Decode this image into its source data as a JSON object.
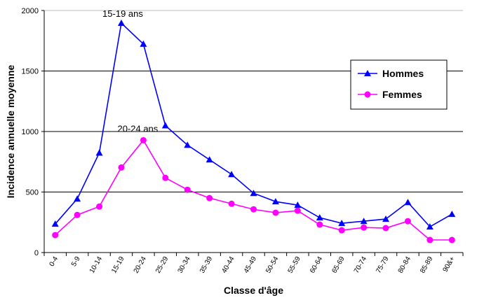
{
  "chart_data": {
    "type": "line",
    "title": "",
    "xlabel": "Classe d'âge",
    "ylabel": "Incidence annuelle moyenne",
    "ylim": [
      0,
      2000
    ],
    "yticks": [
      "0",
      "500",
      "1000",
      "1500",
      "2000"
    ],
    "grid": true,
    "legend_position": "right",
    "categories": [
      "0-4",
      "5-9",
      "10-14",
      "15-19",
      "20-24",
      "25-29",
      "30-34",
      "35-39",
      "40-44",
      "45-49",
      "50-54",
      "55-59",
      "60-64",
      "65-69",
      "70-74",
      "75-79",
      "80-84",
      "85-89",
      "90&+"
    ],
    "series": [
      {
        "name": "Hommes",
        "color": "#0000ff",
        "marker": "triangle",
        "values": [
          236,
          444,
          824,
          1896,
          1723,
          1049,
          888,
          767,
          646,
          490,
          421,
          392,
          288,
          242,
          259,
          277,
          415,
          213,
          317
        ]
      },
      {
        "name": "Femmes",
        "color": "#ff00ff",
        "marker": "circle",
        "values": [
          144,
          311,
          380,
          703,
          928,
          617,
          519,
          450,
          403,
          357,
          329,
          346,
          231,
          184,
          207,
          202,
          259,
          104,
          104
        ]
      }
    ],
    "annotations": [
      {
        "text": "15-19 ans",
        "series": 0,
        "category": "15-19"
      },
      {
        "text": "20-24 ans",
        "series": 1,
        "category": "20-24"
      }
    ]
  }
}
